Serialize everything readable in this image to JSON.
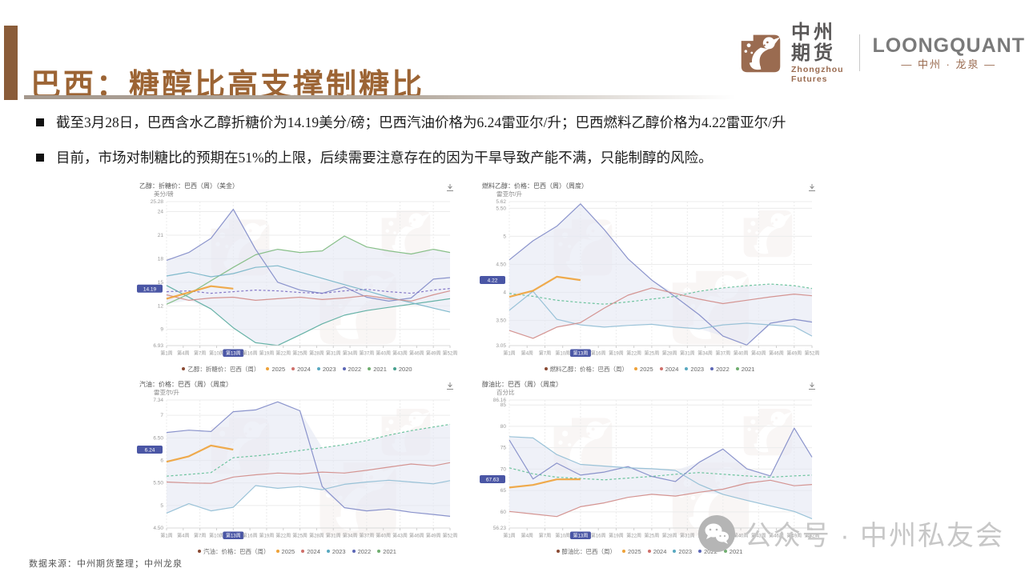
{
  "slide": {
    "title": "巴西：糖醇比高支撑制糖比",
    "bullets": [
      "截至3月28日，巴西含水乙醇折糖价为14.19美分/磅；巴西汽油价格为6.24雷亚尔/升；巴西燃料乙醇价格为4.22雷亚尔/升",
      "目前，市场对制糖比的预期在51%的上限，后续需要注意存在的因为干旱导致产能不满，只能制醇的风险。"
    ]
  },
  "logo": {
    "name_cn": "中州期货",
    "name_en": "Zhongzhou Futures",
    "brand": "LOONGQUANT",
    "brand_sub": "— 中州 · 龙泉 —",
    "brand_color": "#9a6b50"
  },
  "footer": {
    "source": "数据来源：中州期货整理；中州龙泉"
  },
  "watermark": {
    "label": "公众号 · 中州私友会"
  },
  "chart_data": [
    {
      "id": "ethanol-sugar-equivalent-price",
      "type": "line",
      "title": "乙醇：折糖价：巴西（周）（美金）",
      "unit": "美分/磅",
      "current_badge": "14.19",
      "badge_value": 14.19,
      "ylim": [
        6.93,
        25.28
      ],
      "yticks": [
        "25.28",
        "24",
        "21",
        "18",
        "15",
        "12",
        "9",
        "6.93"
      ],
      "xtick_labels": [
        "第1周",
        "第4周",
        "第7周",
        "第10周",
        "第13周",
        "第16周",
        "第19周",
        "第22周",
        "第25周",
        "第28周",
        "第31周",
        "第34周",
        "第37周",
        "第40周",
        "第43周",
        "第46周",
        "第49周",
        "第52周"
      ],
      "highlight_xtick": "第13周",
      "legend_title": "乙醇：折糖价：巴西（周）",
      "x_weeks": [
        1,
        5,
        9,
        13,
        17,
        21,
        25,
        29,
        33,
        37,
        41,
        45,
        49,
        52
      ],
      "series": [
        {
          "name": "2020",
          "color": "#57ab9d",
          "values": [
            14.6,
            13.1,
            11.6,
            9.2,
            7.3,
            6.95,
            8.3,
            9.7,
            10.8,
            11.4,
            11.8,
            12.2,
            12.6,
            12.9
          ]
        },
        {
          "name": "2021",
          "color": "#7cb97c",
          "values": [
            12.2,
            13.5,
            15.2,
            16.9,
            18.5,
            19.2,
            18.8,
            19.0,
            20.9,
            19.5,
            19.0,
            18.6,
            19.2,
            18.8
          ]
        },
        {
          "name": "2022",
          "color": "#7e88c6",
          "values": [
            17.8,
            18.8,
            20.6,
            24.3,
            19.2,
            15.0,
            14.0,
            13.6,
            14.4,
            13.1,
            12.6,
            13.0,
            15.4,
            15.6
          ]
        },
        {
          "name": "2023",
          "color": "#74b4c6",
          "values": [
            15.8,
            16.3,
            15.7,
            16.1,
            16.9,
            17.1,
            16.3,
            15.5,
            14.7,
            13.9,
            13.1,
            12.4,
            11.7,
            11.2
          ]
        },
        {
          "name": "2024",
          "color": "#d08a86",
          "values": [
            13.4,
            12.7,
            13.0,
            13.1,
            12.7,
            12.9,
            13.1,
            12.8,
            13.0,
            13.3,
            12.9,
            12.6,
            13.4,
            13.9
          ]
        },
        {
          "name": "",
          "color": "#7a6cc2",
          "dash": true,
          "in_legend": false,
          "values": [
            13.8,
            13.9,
            13.6,
            13.8,
            14.0,
            13.9,
            13.7,
            13.6,
            13.9,
            14.1,
            13.8,
            13.6,
            14.0,
            14.2
          ]
        },
        {
          "name": "2025",
          "color": "#eea239",
          "width": 2.2,
          "x_weeks": [
            1,
            5,
            9,
            13
          ],
          "values": [
            12.9,
            13.7,
            14.5,
            14.19
          ]
        }
      ],
      "legend_years": [
        {
          "label": "2025",
          "color": "#eea239"
        },
        {
          "label": "2024",
          "color": "#cf6f6a"
        },
        {
          "label": "2023",
          "color": "#58a8c0"
        },
        {
          "label": "2022",
          "color": "#5b66b5"
        },
        {
          "label": "2021",
          "color": "#6fae6f"
        },
        {
          "label": "2020",
          "color": "#47a08f"
        }
      ]
    },
    {
      "id": "fuel-ethanol-price",
      "type": "line",
      "title": "燃料乙醇：价格：巴西（周）（周度）",
      "unit": "雷亚尔/升",
      "current_badge": "4.22",
      "badge_value": 4.22,
      "ylim": [
        3.05,
        5.62
      ],
      "yticks": [
        "5.62",
        "5.50",
        "5",
        "4.50",
        "4",
        "3.50",
        "3.05"
      ],
      "xtick_labels": [
        "第1周",
        "第4周",
        "第7周",
        "第10周",
        "第13周",
        "第16周",
        "第19周",
        "第22周",
        "第25周",
        "第28周",
        "第31周",
        "第34周",
        "第37周",
        "第40周",
        "第43周",
        "第46周",
        "第49周",
        "第52周"
      ],
      "highlight_xtick": "第13周",
      "legend_title": "燃料乙醇：价格：巴西（周）",
      "x_weeks": [
        1,
        5,
        9,
        13,
        17,
        21,
        25,
        29,
        33,
        37,
        41,
        45,
        49,
        52
      ],
      "series": [
        {
          "name": "2021",
          "color": "#5fbf95",
          "dash": true,
          "values": [
            3.98,
            3.93,
            3.86,
            3.82,
            3.79,
            3.83,
            3.88,
            3.93,
            4.02,
            4.08,
            4.12,
            4.15,
            4.12,
            4.07
          ]
        },
        {
          "name": "2022",
          "color": "#7e88c6",
          "values": [
            4.58,
            4.92,
            5.18,
            5.58,
            5.12,
            4.6,
            4.22,
            3.92,
            3.6,
            3.22,
            3.06,
            3.45,
            3.52,
            3.47
          ]
        },
        {
          "name": "2023",
          "color": "#8fbcd4",
          "values": [
            3.68,
            4.02,
            3.52,
            3.42,
            3.38,
            3.41,
            3.43,
            3.38,
            3.35,
            3.42,
            3.45,
            3.42,
            3.39,
            3.22
          ]
        },
        {
          "name": "2024",
          "color": "#d08a86",
          "values": [
            3.32,
            3.18,
            3.38,
            3.46,
            3.72,
            3.95,
            4.08,
            3.98,
            3.88,
            3.8,
            3.86,
            3.92,
            3.97,
            3.94
          ]
        },
        {
          "name": "2025",
          "color": "#eea239",
          "width": 2.2,
          "x_weeks": [
            1,
            5,
            9,
            13
          ],
          "values": [
            3.92,
            4.03,
            4.28,
            4.22
          ]
        }
      ],
      "legend_years": [
        {
          "label": "2025",
          "color": "#eea239"
        },
        {
          "label": "2024",
          "color": "#cf6f6a"
        },
        {
          "label": "2023",
          "color": "#58a8c0"
        },
        {
          "label": "2022",
          "color": "#5b66b5"
        },
        {
          "label": "2021",
          "color": "#6fae6f"
        }
      ]
    },
    {
      "id": "gasoline-price",
      "type": "line",
      "title": "汽油：价格：巴西（周）（周度）",
      "unit": "雷亚尔/升",
      "current_badge": "6.24",
      "badge_value": 6.24,
      "ylim": [
        4.5,
        7.34
      ],
      "yticks": [
        "7.34",
        "7",
        "6.50",
        "6",
        "5.50",
        "5",
        "4.50"
      ],
      "xtick_labels": [
        "第1周",
        "第4周",
        "第7周",
        "第10周",
        "第13周",
        "第16周",
        "第19周",
        "第22周",
        "第25周",
        "第28周",
        "第31周",
        "第34周",
        "第37周",
        "第40周",
        "第43周",
        "第46周",
        "第49周",
        "第52周"
      ],
      "highlight_xtick": "第13周",
      "legend_title": "汽油：价格：巴西（周）",
      "x_weeks": [
        1,
        5,
        9,
        13,
        17,
        21,
        25,
        29,
        33,
        37,
        41,
        45,
        49,
        52
      ],
      "series": [
        {
          "name": "2021",
          "color": "#5fbf95",
          "dash": true,
          "values": [
            5.65,
            5.69,
            5.73,
            6.06,
            6.1,
            6.15,
            6.22,
            6.28,
            6.35,
            6.44,
            6.56,
            6.66,
            6.74,
            6.8
          ]
        },
        {
          "name": "2022",
          "color": "#7e88c6",
          "values": [
            6.62,
            6.67,
            6.64,
            7.08,
            7.12,
            7.3,
            7.1,
            5.42,
            4.95,
            4.88,
            4.92,
            4.85,
            4.8,
            4.76
          ]
        },
        {
          "name": "2023",
          "color": "#8fbcd4",
          "values": [
            4.83,
            5.04,
            4.88,
            4.96,
            5.44,
            5.38,
            5.42,
            5.35,
            5.47,
            5.52,
            5.56,
            5.52,
            5.48,
            5.55
          ]
        },
        {
          "name": "2024",
          "color": "#d08a86",
          "values": [
            5.52,
            5.5,
            5.49,
            5.63,
            5.68,
            5.72,
            5.7,
            5.74,
            5.72,
            5.78,
            5.85,
            5.92,
            5.88,
            5.95
          ]
        },
        {
          "name": "2025",
          "color": "#eea239",
          "width": 2.2,
          "x_weeks": [
            1,
            5,
            9,
            13
          ],
          "values": [
            5.97,
            6.09,
            6.33,
            6.24
          ]
        }
      ],
      "legend_years": [
        {
          "label": "2025",
          "color": "#eea239"
        },
        {
          "label": "2024",
          "color": "#cf6f6a"
        },
        {
          "label": "2023",
          "color": "#58a8c0"
        },
        {
          "label": "2022",
          "color": "#5b66b5"
        },
        {
          "label": "2021",
          "color": "#6fae6f"
        }
      ]
    },
    {
      "id": "ethanol-gasoline-ratio",
      "type": "line",
      "title": "醇油比：巴西（周）（周度）",
      "unit": "百分比",
      "current_badge": "67.63",
      "badge_value": 67.63,
      "ylim": [
        56.23,
        86.16
      ],
      "yticks": [
        "86.16",
        "85",
        "80",
        "75",
        "70",
        "65",
        "60",
        "56.23"
      ],
      "xtick_labels": [
        "第1周",
        "第4周",
        "第7周",
        "第10周",
        "第13周",
        "第16周",
        "第19周",
        "第22周",
        "第25周",
        "第28周",
        "第31周",
        "第34周",
        "第37周",
        "第40周",
        "第43周",
        "第46周",
        "第49周",
        "第52周"
      ],
      "highlight_xtick": "第13周",
      "legend_title": "醇油比：巴西（周）",
      "x_weeks": [
        1,
        5,
        9,
        13,
        17,
        21,
        25,
        29,
        33,
        37,
        41,
        45,
        49,
        52
      ],
      "series": [
        {
          "name": "2021",
          "color": "#5fbf95",
          "dash": true,
          "values": [
            70.3,
            68.9,
            68.1,
            67.8,
            67.5,
            67.9,
            68.3,
            68.8,
            69.2,
            68.8,
            68.4,
            68.1,
            68.4,
            68.6
          ]
        },
        {
          "name": "2022",
          "color": "#7e88c6",
          "values": [
            76.8,
            67.7,
            71.4,
            68.6,
            69.3,
            70.6,
            68.3,
            67.1,
            71.6,
            74.7,
            70.1,
            68.4,
            79.6,
            72.8
          ]
        },
        {
          "name": "2023",
          "color": "#8fbcd4",
          "values": [
            77.6,
            77.3,
            73.4,
            71.1,
            70.7,
            70.3,
            70.1,
            69.7,
            66.4,
            64.1,
            62.7,
            61.4,
            60.1,
            58.4
          ]
        },
        {
          "name": "2024",
          "color": "#d08a86",
          "values": [
            60.1,
            59.5,
            58.9,
            61.2,
            62.1,
            63.4,
            64.1,
            63.7,
            64.6,
            65.3,
            66.7,
            67.4,
            66.1,
            66.4
          ]
        },
        {
          "name": "2025",
          "color": "#eea239",
          "width": 2.2,
          "x_weeks": [
            1,
            5,
            9,
            13
          ],
          "values": [
            65.7,
            66.3,
            67.6,
            67.63
          ]
        }
      ],
      "legend_years": [
        {
          "label": "2025",
          "color": "#eea239"
        },
        {
          "label": "2024",
          "color": "#cf6f6a"
        },
        {
          "label": "2023",
          "color": "#58a8c0"
        },
        {
          "label": "2022",
          "color": "#5b66b5"
        },
        {
          "label": "2021",
          "color": "#6fae6f"
        }
      ]
    }
  ]
}
